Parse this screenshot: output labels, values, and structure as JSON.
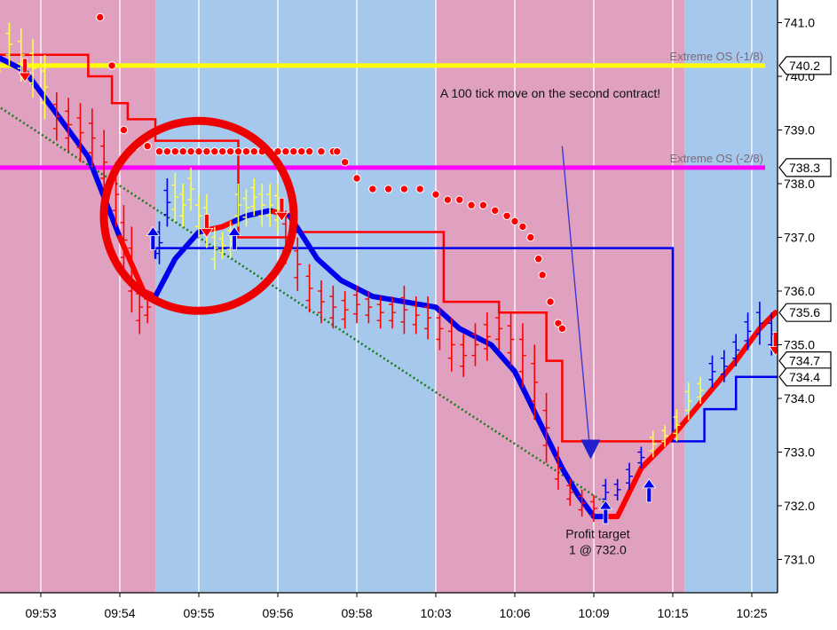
{
  "chart_data": {
    "type": "line",
    "x_categories": [
      "09:53",
      "09:54",
      "09:55",
      "09:56",
      "09:58",
      "10:03",
      "10:06",
      "10:09",
      "10:15",
      "10:25"
    ],
    "ylim": [
      730.0,
      741.3
    ],
    "y_ticks": [
      731.0,
      732.0,
      733.0,
      734.0,
      735.0,
      736.0,
      737.0,
      738.0,
      739.0,
      740.0,
      741.0
    ],
    "y_tick_labels": [
      "731.0",
      "732.0",
      "733.0",
      "734.0",
      "735.0",
      "736.0",
      "737.0",
      "738.0",
      "739.0",
      "740.0",
      "741.0"
    ],
    "grid": true,
    "background_regions": [
      {
        "x_start": -0.6,
        "x_end": 1.45,
        "color": "#e0a1c0"
      },
      {
        "x_start": 1.45,
        "x_end": 5.0,
        "color": "#a6c8ec"
      },
      {
        "x_start": 5.0,
        "x_end": 8.15,
        "color": "#e0a1c0"
      },
      {
        "x_start": 8.15,
        "x_end": 9.45,
        "color": "#a6c8ec"
      }
    ],
    "levels": [
      {
        "name": "Extreme OS (-1/8)",
        "value": 740.2,
        "label": "740.2",
        "color": "#ffff00"
      },
      {
        "name": "Extreme OS (-2/8)",
        "value": 738.3,
        "label": "738.3",
        "color": "#ff00ff"
      }
    ],
    "price_labels": [
      "735.6",
      "734.7",
      "734.4"
    ],
    "price_label_values": [
      735.6,
      734.7,
      734.4
    ],
    "series": [
      {
        "kind": "thick-trend",
        "x": [
          -0.6,
          -0.2,
          0.2,
          0.6,
          1.0,
          1.3,
          1.45,
          1.7,
          2.0,
          2.3,
          2.6,
          2.9,
          3.15,
          3.5,
          3.8,
          4.2,
          4.6,
          5.0,
          5.3,
          5.7,
          6.0,
          6.3,
          6.6,
          6.8,
          7.0,
          7.3,
          7.6,
          8.0,
          8.4,
          8.8,
          9.1,
          9.3
        ],
        "y": [
          740.4,
          740.1,
          739.3,
          738.5,
          737.0,
          736.0,
          735.9,
          736.6,
          737.1,
          737.2,
          737.4,
          737.5,
          737.4,
          736.6,
          736.2,
          735.9,
          735.8,
          735.7,
          735.3,
          735.0,
          734.5,
          733.6,
          732.7,
          732.2,
          731.8,
          731.8,
          732.7,
          733.3,
          734.0,
          734.7,
          735.3,
          735.6
        ],
        "colors": [
          "#0000ee",
          "#ff0000"
        ],
        "color_breaks": [
          1.0,
          1.45,
          2.1,
          2.45,
          2.95,
          3.15,
          7.15
        ]
      },
      {
        "kind": "step-upper",
        "color": "#ff0000",
        "x": [
          -0.6,
          0.6,
          0.6,
          0.9,
          0.9,
          1.1,
          1.1,
          1.45,
          1.45,
          2.5,
          2.5,
          3.2,
          3.2,
          5.1,
          5.1,
          5.8,
          5.8,
          6.4,
          6.4,
          6.6,
          6.6,
          7.2,
          7.2,
          8.0
        ],
        "y": [
          740.4,
          740.4,
          740.0,
          740.0,
          739.5,
          739.5,
          739.2,
          739.2,
          738.8,
          738.8,
          737.0,
          737.0,
          737.1,
          737.1,
          735.8,
          735.8,
          735.6,
          735.6,
          734.7,
          734.7,
          733.2,
          733.2,
          733.2,
          733.2
        ]
      },
      {
        "kind": "step-lower",
        "color": "#0000ee",
        "x": [
          1.45,
          1.45,
          5.0,
          5.0,
          8.0,
          8.0,
          8.4,
          8.4,
          8.8,
          8.8,
          9.4
        ],
        "y": [
          736.6,
          736.8,
          736.8,
          736.8,
          736.8,
          733.2,
          733.2,
          733.8,
          733.8,
          734.4,
          734.4
        ]
      },
      {
        "kind": "trailing-dots",
        "color": "#ff0000",
        "x": [
          0.45,
          0.6,
          0.75,
          0.9,
          1.05,
          1.2,
          1.35,
          1.5,
          1.6,
          1.7,
          1.8,
          1.9,
          2.0,
          2.1,
          2.2,
          2.3,
          2.4,
          2.5,
          2.6,
          2.7,
          2.8,
          2.9,
          3.0,
          3.1,
          3.2,
          3.3,
          3.4,
          3.55,
          3.7,
          3.75,
          3.85,
          4.0,
          4.2,
          4.4,
          4.6,
          4.8,
          5.0,
          5.15,
          5.3,
          5.45,
          5.6,
          5.75,
          5.9,
          6.0,
          6.1,
          6.2,
          6.3,
          6.35,
          6.45,
          6.55,
          6.6
        ],
        "y": [
          741.6,
          741.6,
          741.1,
          740.2,
          739.0,
          738.7,
          738.7,
          738.6,
          738.6,
          738.6,
          738.6,
          738.6,
          738.6,
          738.6,
          738.6,
          738.6,
          738.6,
          738.6,
          738.6,
          738.6,
          738.6,
          738.6,
          738.6,
          738.6,
          738.6,
          738.6,
          738.6,
          738.6,
          738.6,
          738.6,
          738.4,
          738.1,
          737.9,
          737.9,
          737.9,
          737.9,
          737.8,
          737.7,
          737.7,
          737.6,
          737.6,
          737.5,
          737.4,
          737.3,
          737.2,
          737.0,
          736.6,
          736.3,
          735.8,
          735.4,
          735.3
        ]
      },
      {
        "kind": "diagonal-dotted",
        "color": "#1a7a1a",
        "x": [
          -0.6,
          7.2
        ],
        "y": [
          739.5,
          732.0
        ]
      },
      {
        "kind": "price-bars",
        "x": [
          -0.55,
          -0.4,
          -0.25,
          -0.1,
          0.05,
          0.2,
          0.35,
          0.5,
          0.65,
          0.8,
          0.95,
          1.05,
          1.15,
          1.25,
          1.35,
          1.5,
          1.6,
          1.7,
          1.8,
          1.9,
          2.0,
          2.1,
          2.2,
          2.3,
          2.4,
          2.5,
          2.6,
          2.7,
          2.8,
          2.9,
          3.0,
          3.1,
          3.25,
          3.4,
          3.55,
          3.7,
          3.85,
          4.0,
          4.15,
          4.3,
          4.45,
          4.6,
          4.75,
          4.9,
          5.05,
          5.2,
          5.35,
          5.5,
          5.65,
          5.8,
          5.95,
          6.1,
          6.25,
          6.4,
          6.55,
          6.7,
          6.85,
          7.0,
          7.15,
          7.3,
          7.45,
          7.6,
          7.75,
          7.9,
          8.05,
          8.2,
          8.35,
          8.5,
          8.65,
          8.8,
          8.95,
          9.1,
          9.25,
          9.4
        ],
        "high": [
          740.5,
          741.0,
          740.9,
          740.7,
          740.4,
          739.7,
          739.6,
          739.5,
          739.4,
          739.0,
          738.4,
          737.6,
          737.2,
          736.2,
          736.0,
          737.3,
          738.1,
          738.2,
          738.0,
          738.3,
          737.8,
          737.8,
          737.2,
          737.1,
          737.3,
          738.0,
          737.9,
          738.1,
          738.0,
          738.0,
          738.0,
          737.5,
          737.0,
          736.5,
          736.2,
          736.1,
          736.0,
          736.1,
          736.0,
          735.9,
          735.9,
          736.1,
          735.9,
          735.9,
          735.7,
          735.5,
          735.2,
          735.4,
          735.6,
          735.7,
          735.6,
          735.4,
          735.0,
          734.1,
          733.1,
          732.5,
          732.3,
          732.2,
          732.5,
          732.5,
          732.8,
          733.1,
          733.4,
          733.5,
          733.8,
          734.3,
          734.4,
          734.8,
          734.9,
          735.2,
          735.6,
          735.8,
          735.6,
          735.1
        ],
        "low": [
          739.7,
          740.2,
          739.9,
          739.6,
          739.2,
          738.8,
          738.6,
          738.4,
          738.3,
          737.8,
          737.2,
          736.3,
          735.6,
          735.2,
          735.4,
          736.5,
          737.2,
          737.3,
          737.2,
          737.5,
          737.0,
          736.8,
          736.4,
          736.6,
          736.6,
          737.2,
          737.2,
          737.4,
          737.2,
          737.2,
          737.1,
          736.5,
          736.0,
          735.6,
          735.4,
          735.3,
          735.3,
          735.4,
          735.4,
          735.3,
          735.3,
          735.2,
          735.2,
          735.1,
          734.9,
          734.5,
          734.4,
          734.6,
          734.7,
          734.9,
          734.6,
          734.2,
          733.6,
          732.8,
          732.3,
          732.0,
          731.8,
          731.7,
          732.0,
          732.1,
          732.3,
          732.7,
          732.9,
          733.1,
          733.2,
          733.6,
          733.9,
          734.2,
          734.3,
          734.6,
          734.9,
          735.0,
          734.8,
          734.3
        ],
        "colors": [
          "#ffff44",
          "#ffff44",
          "#ffff44",
          "#ffff44",
          "#ffff44",
          "#ff0000",
          "#ff0000",
          "#ff0000",
          "#ff0000",
          "#ff0000",
          "#ff0000",
          "#ff0000",
          "#ff0000",
          "#ff0000",
          "#ff0000",
          "#0000ee",
          "#0000ee",
          "#ffff44",
          "#ffff44",
          "#ffff44",
          "#ffff44",
          "#ffff44",
          "#ffff44",
          "#ffff44",
          "#ffff44",
          "#ffff44",
          "#ffff44",
          "#ffff44",
          "#ffff44",
          "#ffff44",
          "#ffff44",
          "#ff0000",
          "#ff0000",
          "#ff0000",
          "#ff0000",
          "#ff0000",
          "#ff0000",
          "#ff0000",
          "#ff0000",
          "#ff0000",
          "#ff0000",
          "#ff0000",
          "#ff0000",
          "#ff0000",
          "#ff0000",
          "#ff0000",
          "#ff0000",
          "#ff0000",
          "#ff0000",
          "#ff0000",
          "#ff0000",
          "#ff0000",
          "#ff0000",
          "#ff0000",
          "#ff0000",
          "#ff0000",
          "#ff0000",
          "#ff0000",
          "#0000ee",
          "#0000ee",
          "#0000ee",
          "#0000ee",
          "#ffff44",
          "#ffff44",
          "#ffff44",
          "#ffff44",
          "#ffff44",
          "#0000ee",
          "#0000ee",
          "#0000ee",
          "#0000ee",
          "#0000ee",
          "#0000ee",
          "#ff0000"
        ]
      }
    ],
    "signals": [
      {
        "direction": "down",
        "x": -0.2,
        "y": 740.1,
        "color": "#ff0000"
      },
      {
        "direction": "up",
        "x": 1.42,
        "y": 737.0,
        "color": "#0000ee"
      },
      {
        "direction": "down",
        "x": 2.1,
        "y": 737.2,
        "color": "#ff0000"
      },
      {
        "direction": "up",
        "x": 2.45,
        "y": 737.0,
        "color": "#0000ee"
      },
      {
        "direction": "down",
        "x": 3.05,
        "y": 737.5,
        "color": "#ff0000"
      },
      {
        "direction": "up",
        "x": 7.15,
        "y": 731.9,
        "color": "#0000ee"
      },
      {
        "direction": "up",
        "x": 7.7,
        "y": 732.3,
        "color": "#0000ee"
      },
      {
        "direction": "down",
        "x": 9.3,
        "y": 735.0,
        "color": "#ff0000"
      }
    ],
    "annotations": [
      {
        "text": "A 100 tick move on the second contract!",
        "x": 6.45,
        "y": 739.6
      },
      {
        "text": "Profit target",
        "x": 7.05,
        "y": 731.4
      },
      {
        "text": "1 @ 732.0",
        "x": 7.05,
        "y": 731.1
      }
    ],
    "arrow_annotation": {
      "x1": 6.6,
      "y1": 738.7,
      "x2": 6.96,
      "y2": 732.9,
      "color": "#3a3ad0"
    },
    "highlight_circle": {
      "cx": 2.0,
      "cy": 737.4,
      "color": "#ee0000"
    }
  }
}
